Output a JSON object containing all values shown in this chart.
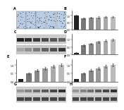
{
  "panel_B": {
    "values": [
      1.0,
      0.82,
      0.85,
      0.88,
      0.9,
      0.92
    ],
    "errors": [
      0.04,
      0.05,
      0.05,
      0.06,
      0.06,
      0.05
    ],
    "colors": [
      "#222222",
      "#777777",
      "#888888",
      "#999999",
      "#aaaaaa",
      "#bbbbbb"
    ],
    "ylim": [
      0,
      1.35
    ],
    "yticks": [
      0,
      0.5,
      1.0
    ]
  },
  "panel_D": {
    "values": [
      0.12,
      0.6,
      0.72,
      0.85,
      0.92,
      0.98
    ],
    "errors": [
      0.02,
      0.05,
      0.06,
      0.07,
      0.07,
      0.07
    ],
    "colors": [
      "#222222",
      "#777777",
      "#888888",
      "#999999",
      "#aaaaaa",
      "#bbbbbb"
    ],
    "ylim": [
      0,
      1.35
    ],
    "yticks": [
      0,
      0.5,
      1.0
    ]
  },
  "panel_E": {
    "values": [
      0.14,
      0.5,
      0.68,
      0.8,
      0.92,
      1.02
    ],
    "errors": [
      0.02,
      0.05,
      0.06,
      0.07,
      0.08,
      0.08
    ],
    "colors": [
      "#222222",
      "#777777",
      "#888888",
      "#999999",
      "#aaaaaa",
      "#bbbbbb"
    ],
    "ylim": [
      0,
      1.35
    ],
    "yticks": [
      0,
      0.5,
      1.0
    ]
  },
  "panel_F": {
    "values": [
      0.14,
      0.5,
      0.68,
      0.8,
      0.92,
      1.02
    ],
    "errors": [
      0.02,
      0.05,
      0.06,
      0.07,
      0.08,
      0.08
    ],
    "colors": [
      "#222222",
      "#777777",
      "#888888",
      "#999999",
      "#aaaaaa",
      "#bbbbbb"
    ],
    "ylim": [
      0,
      1.35
    ],
    "yticks": [
      0,
      0.5,
      1.0
    ]
  },
  "bg_color": "#ffffff",
  "micro_bg": "#b8cce4",
  "micro_dot": "#7a9abf",
  "wb_bg": "#c8c8c8",
  "wb_band_colors_top": [
    "#383838",
    "#484848",
    "#585858",
    "#686868",
    "#787878",
    "#888888"
  ],
  "wb_band_colors_bot": [
    "#484848",
    "#484848",
    "#484848",
    "#484848",
    "#484848",
    "#484848"
  ]
}
